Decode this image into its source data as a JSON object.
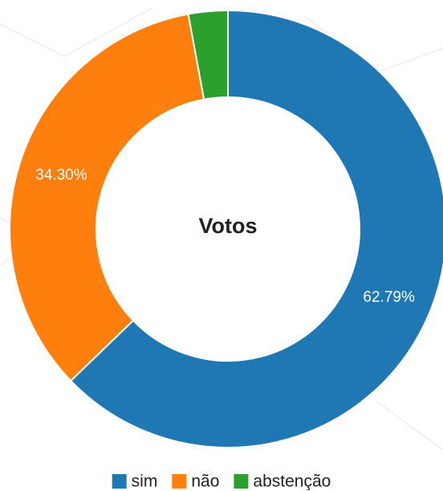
{
  "chart_data": {
    "type": "donut",
    "title": "Votos",
    "categories": [
      "sim",
      "não",
      "abstenção"
    ],
    "values": [
      62.79,
      34.3,
      2.91
    ],
    "value_labels": [
      "62.79%",
      "34.30%",
      null
    ],
    "colors": [
      "#1f77b4",
      "#ff7f0e",
      "#2ca02c"
    ],
    "legend": "bottom"
  }
}
